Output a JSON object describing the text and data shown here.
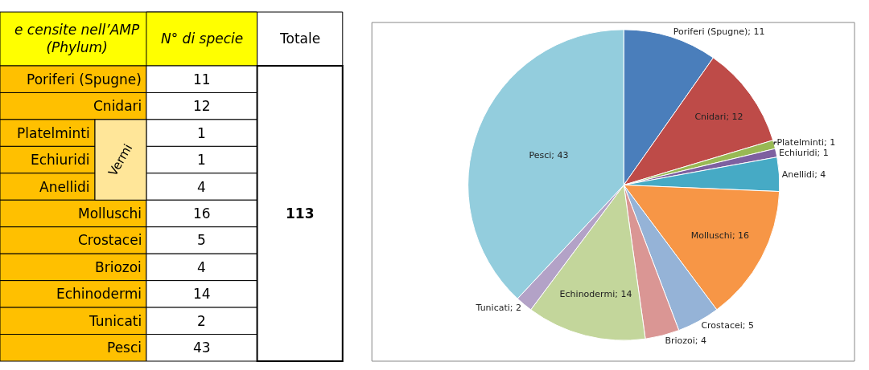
{
  "chart_data": [
    {
      "type": "other",
      "categories": [
        "Poriferi (Spugne)",
        "Cnidari",
        "Platelminti",
        "Echiuridi",
        "Anellidi",
        "Molluschi",
        "Crostacei",
        "Briozoi",
        "Echinodermi",
        "Tunicati",
        "Pesci"
      ],
      "values": [
        11,
        12,
        1,
        1,
        4,
        16,
        5,
        4,
        14,
        2,
        43
      ],
      "data_labels": true,
      "annotations": [
        "e censite nell’AMP\n(Phylum)",
        "N° di specie",
        "Totale",
        "113",
        "Vermi"
      ]
    },
    {
      "type": "pie",
      "categories": [
        "Poriferi (Spugne); 11",
        "Cnidari; 12",
        "Platelminti; 1",
        "Echiuridi; 1",
        "Anellidi; 4",
        "Molluschi; 16",
        "Crostacei; 5",
        "Briozoi; 4",
        "Echinodermi; 14",
        "Tunicati; 2",
        "Pesci; 43"
      ],
      "values": [
        11,
        12,
        1,
        1,
        4,
        16,
        5,
        4,
        14,
        2,
        43
      ],
      "colors": [
        "#4a7ebb",
        "#be4b48",
        "#98b954",
        "#7d60a0",
        "#46aac5",
        "#f79646",
        "#95b3d7",
        "#da9694",
        "#c3d69b",
        "#b3a2c7",
        "#93cddd"
      ],
      "legend": false
    }
  ]
}
